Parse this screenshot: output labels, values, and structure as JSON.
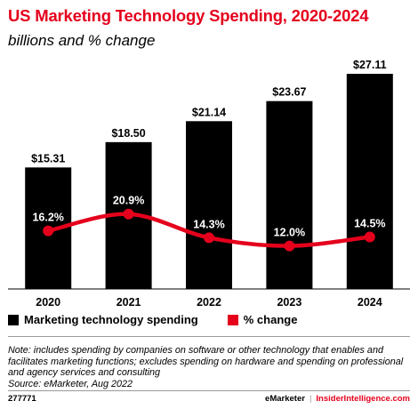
{
  "header": {
    "title": "US Marketing Technology Spending, 2020-2024",
    "subtitle": "billions and % change"
  },
  "legend": {
    "bar_label": "Marketing technology spending",
    "line_label": "% change"
  },
  "note": "Note: includes spending by companies on software or other technology that enables and facilitates marketing functions; excludes spending on hardware and spending on professional and agency services and consulting",
  "source": "Source: eMarketer, Aug 2022",
  "footer": {
    "id": "277771",
    "brand": "eMarketer",
    "divider": "|",
    "brand2": "InsiderIntelligence.com"
  },
  "colors": {
    "title": "#e5001c",
    "bar": "#000000",
    "line": "#e5001c"
  },
  "chart_data": {
    "type": "bar",
    "categories": [
      "2020",
      "2021",
      "2022",
      "2023",
      "2024"
    ],
    "series": [
      {
        "name": "Marketing technology spending",
        "type": "bar",
        "values": [
          15.31,
          18.5,
          21.14,
          23.67,
          27.11
        ],
        "labels": [
          "$15.31",
          "$18.50",
          "$21.14",
          "$23.67",
          "$27.11"
        ]
      },
      {
        "name": "% change",
        "type": "line",
        "values": [
          16.2,
          20.9,
          14.3,
          12.0,
          14.5
        ],
        "labels": [
          "16.2%",
          "20.9%",
          "14.3%",
          "12.0%",
          "14.5%"
        ]
      }
    ],
    "y_range": [
      0,
      27.11
    ],
    "pct_range": [
      0,
      60
    ],
    "grid": false,
    "legend_position": "bottom-left"
  }
}
